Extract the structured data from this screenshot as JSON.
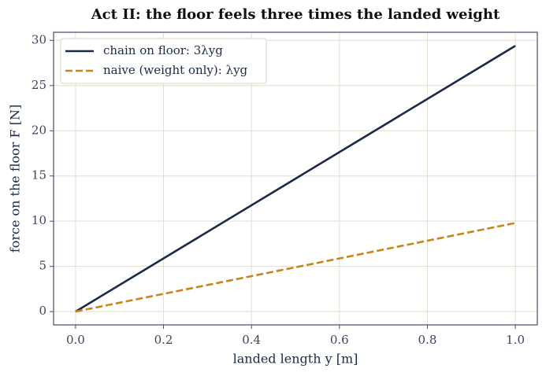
{
  "chart_data": {
    "type": "line",
    "title": "Act II: the floor feels three times the landed weight",
    "xlabel": "landed length  y  [m]",
    "ylabel": "force on the floor  F  [N]",
    "x": [
      0,
      1
    ],
    "series": [
      {
        "name": "chain on floor: 3λyg",
        "color": "#1b2a45",
        "dash": "solid",
        "values": [
          0,
          29.4
        ]
      },
      {
        "name": "naive (weight only): λyg",
        "color": "#c8861a",
        "dash": "dashed",
        "values": [
          0,
          9.8
        ]
      }
    ],
    "xlim": [
      -0.05,
      1.05
    ],
    "ylim": [
      -1.47,
      30.9
    ],
    "xticks": [
      {
        "value": 0,
        "label": "0.0"
      },
      {
        "value": 0.2,
        "label": "0.2"
      },
      {
        "value": 0.4,
        "label": "0.4"
      },
      {
        "value": 0.6,
        "label": "0.6"
      },
      {
        "value": 0.8,
        "label": "0.8"
      },
      {
        "value": 1,
        "label": "1.0"
      }
    ],
    "yticks": [
      0,
      5,
      10,
      15,
      20,
      25,
      30
    ],
    "grid": true,
    "legend": "upper left"
  }
}
